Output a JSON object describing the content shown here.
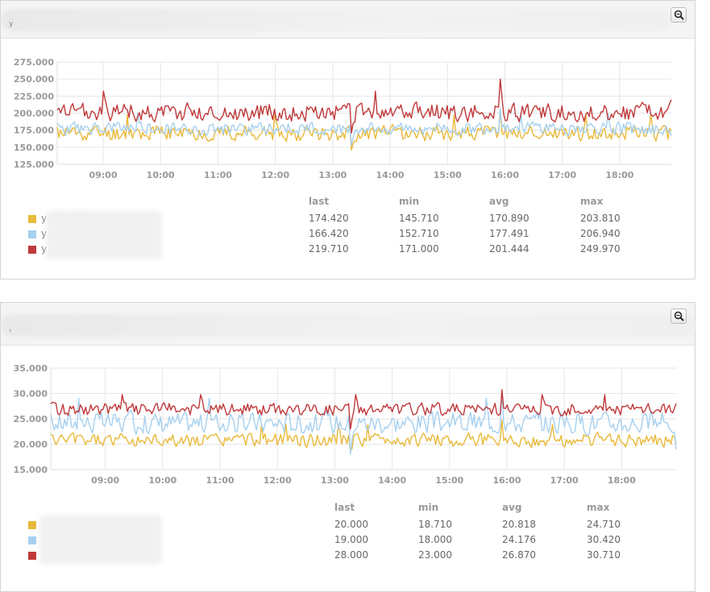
{
  "panels": [
    {
      "title_prefix": "y",
      "legend_headers": {
        "last": "last",
        "min": "min",
        "avg": "avg",
        "max": "max"
      },
      "series": [
        {
          "name": "y…t…002.",
          "color": "#e9b93a",
          "last": "174.420",
          "min": "145.710",
          "avg": "170.890",
          "max": "203.810"
        },
        {
          "name": "y…t…042.",
          "color": "#a6d0ef",
          "last": "166.420",
          "min": "152.710",
          "avg": "177.491",
          "max": "206.940"
        },
        {
          "name": "y…043.l",
          "color": "#c0393b",
          "last": "219.710",
          "min": "171.000",
          "avg": "201.444",
          "max": "249.970"
        }
      ]
    },
    {
      "title_prefix": "›",
      "legend_headers": {
        "last": "last",
        "min": "min",
        "avg": "avg",
        "max": "max"
      },
      "series": [
        {
          "name": "…02.",
          "color": "#e9b93a",
          "last": "20.000",
          "min": "18.710",
          "avg": "20.818",
          "max": "24.710"
        },
        {
          "name": "…42.l",
          "color": "#a6d0ef",
          "last": "19.000",
          "min": "18.000",
          "avg": "24.176",
          "max": "30.420"
        },
        {
          "name": "…043.",
          "color": "#c0393b",
          "last": "28.000",
          "min": "23.000",
          "avg": "26.870",
          "max": "30.710"
        }
      ]
    }
  ],
  "chart_data": [
    {
      "type": "line",
      "x_ticks": [
        "09:00",
        "10:00",
        "11:00",
        "12:00",
        "13:00",
        "14:00",
        "15:00",
        "16:00",
        "17:00",
        "18:00"
      ],
      "y_ticks": [
        "275.000",
        "250.000",
        "225.000",
        "200.000",
        "175.000",
        "150.000",
        "125.000"
      ],
      "ylim": [
        125,
        275
      ],
      "xlim_hours": [
        8.2,
        18.9
      ],
      "grid": true,
      "series": [
        {
          "color": "#e9b93a",
          "base": 170.9,
          "amp": 12,
          "min": 145.71,
          "max": 203.81,
          "last": 174.42,
          "seed": 11
        },
        {
          "color": "#a6d0ef",
          "base": 177.5,
          "amp": 10,
          "min": 152.71,
          "max": 206.94,
          "last": 166.42,
          "seed": 23
        },
        {
          "color": "#c0393b",
          "base": 201.4,
          "amp": 14,
          "min": 171.0,
          "max": 249.97,
          "last": 219.71,
          "seed": 37
        }
      ]
    },
    {
      "type": "line",
      "x_ticks": [
        "09:00",
        "10:00",
        "11:00",
        "12:00",
        "13:00",
        "14:00",
        "15:00",
        "16:00",
        "17:00",
        "18:00"
      ],
      "y_ticks": [
        "35.000",
        "30.000",
        "25.000",
        "20.000",
        "15.000"
      ],
      "ylim": [
        15,
        35
      ],
      "xlim_hours": [
        8.05,
        18.95
      ],
      "grid": true,
      "series": [
        {
          "color": "#e9b93a",
          "base": 20.8,
          "amp": 1.4,
          "min": 18.71,
          "max": 24.71,
          "last": 20.0,
          "seed": 5
        },
        {
          "color": "#a6d0ef",
          "base": 24.2,
          "amp": 2.2,
          "min": 18.0,
          "max": 30.42,
          "last": 19.0,
          "seed": 17
        },
        {
          "color": "#c0393b",
          "base": 26.9,
          "amp": 1.3,
          "min": 23.0,
          "max": 30.71,
          "last": 28.0,
          "seed": 29
        }
      ]
    }
  ]
}
